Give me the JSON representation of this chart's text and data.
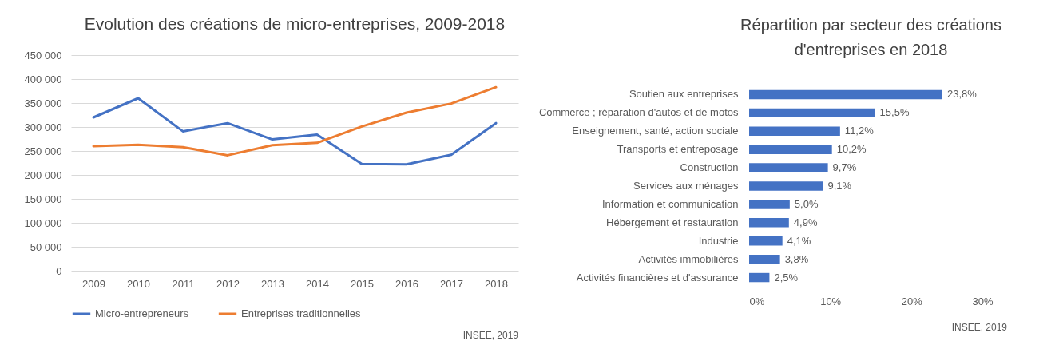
{
  "chart_data": [
    {
      "type": "line",
      "title": "Evolution des créations de micro-entreprises, 2009-2018",
      "categories": [
        "2009",
        "2010",
        "2011",
        "2012",
        "2013",
        "2014",
        "2015",
        "2016",
        "2017",
        "2018"
      ],
      "series": [
        {
          "name": "Micro-entrepreneurs",
          "color": "#4472c4",
          "values": [
            320000,
            360000,
            291000,
            308000,
            274000,
            284000,
            223000,
            222000,
            242000,
            308000
          ]
        },
        {
          "name": "Entreprises traditionnelles",
          "color": "#ed7d31",
          "values": [
            260000,
            263000,
            258000,
            241000,
            262000,
            267000,
            301000,
            330000,
            349000,
            383000
          ]
        }
      ],
      "ylim": [
        0,
        450000
      ],
      "yticks": [
        {
          "value": 0,
          "label": "0"
        },
        {
          "value": 50000,
          "label": "50 000"
        },
        {
          "value": 100000,
          "label": "100 000"
        },
        {
          "value": 150000,
          "label": "150 000"
        },
        {
          "value": 200000,
          "label": "200 000"
        },
        {
          "value": 250000,
          "label": "250 000"
        },
        {
          "value": 300000,
          "label": "300 000"
        },
        {
          "value": 350000,
          "label": "350 000"
        },
        {
          "value": 400000,
          "label": "400 000"
        },
        {
          "value": 450000,
          "label": "450 000"
        }
      ],
      "grid": "y",
      "legend": "bottom",
      "line_style": "solid",
      "annotations": [
        "INSEE, 2019"
      ]
    },
    {
      "type": "bar",
      "orientation": "horizontal",
      "title": "Répartition par secteur des créations d'entreprises en 2018",
      "categories": [
        "Soutien aux entreprises",
        "Commerce ; réparation d'autos et de motos",
        "Enseignement, santé, action sociale",
        "Transports et entreposage",
        "Construction",
        "Services aux ménages",
        "Information et communication",
        "Hébergement et restauration",
        "Industrie",
        "Activités immobilières",
        "Activités financières et d'assurance"
      ],
      "values": [
        23.8,
        15.5,
        11.2,
        10.2,
        9.7,
        9.1,
        5.0,
        4.9,
        4.1,
        3.8,
        2.5
      ],
      "value_labels": [
        "23,8%",
        "15,5%",
        "11,2%",
        "10,2%",
        "9,7%",
        "9,1%",
        "5,0%",
        "4,9%",
        "4,1%",
        "3,8%",
        "2,5%"
      ],
      "color": "#4472c4",
      "xlim": [
        0,
        30
      ],
      "xticks": [
        {
          "value": 0,
          "label": "0%"
        },
        {
          "value": 10,
          "label": "10%"
        },
        {
          "value": 20,
          "label": "20%"
        },
        {
          "value": 30,
          "label": "30%"
        }
      ],
      "grid": false,
      "annotations": [
        "INSEE, 2019"
      ]
    }
  ]
}
